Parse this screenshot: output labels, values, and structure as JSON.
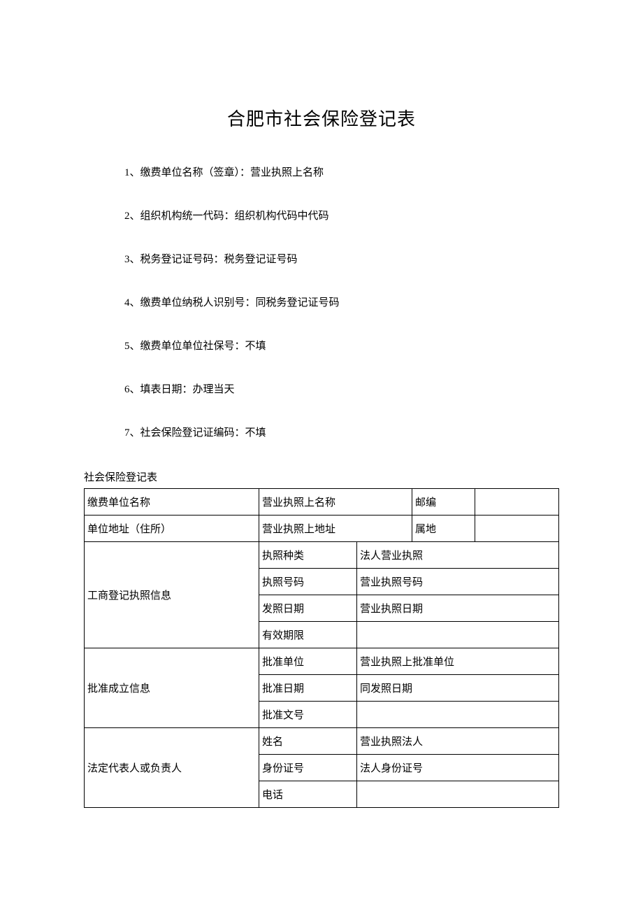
{
  "title": "合肥市社会保险登记表",
  "items": [
    "1、缴费单位名称（签章）：营业执照上名称",
    "2、组织机构统一代码：组织机构代码中代码",
    "3、税务登记证号码：税务登记证号码",
    "4、缴费单位纳税人识别号：同税务登记证号码",
    "5、缴费单位单位社保号：不填",
    "6、填表日期：办理当天",
    "7、社会保险登记证编码：不填"
  ],
  "tableCaption": "社会保险登记表",
  "table": {
    "r1c1": "缴费单位名称",
    "r1c2": "营业执照上名称",
    "r1c3": "邮编",
    "r1c4": "",
    "r2c1": "单位地址（住所）",
    "r2c2": "营业执照上地址",
    "r2c3": "属地",
    "r2c4": "",
    "r3c1": "工商登记执照信息",
    "r3s1": "执照种类",
    "r3v1": "法人营业执照",
    "r3s2": "执照号码",
    "r3v2": "营业执照号码",
    "r3s3": "发照日期",
    "r3v3": "营业执照日期",
    "r3s4": "有效期限",
    "r3v4": "",
    "r4c1": "批准成立信息",
    "r4s1": "批准单位",
    "r4v1": "营业执照上批准单位",
    "r4s2": "批准日期",
    "r4v2": "同发照日期",
    "r4s3": "批准文号",
    "r4v3": "",
    "r5c1": "法定代表人或负责人",
    "r5s1": "姓名",
    "r5v1": "营业执照法人",
    "r5s2": "身份证号",
    "r5v2": "法人身份证号",
    "r5s3": "电话",
    "r5v3": ""
  },
  "style": {
    "background": "#ffffff",
    "textColor": "#000000",
    "borderColor": "#000000",
    "titleFontSize": 26,
    "bodyFontSize": 15
  }
}
